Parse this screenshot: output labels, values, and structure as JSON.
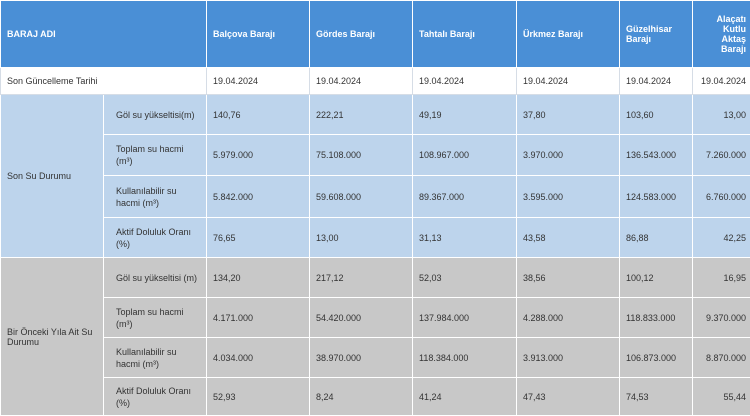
{
  "header": {
    "col0": "BARAJ ADI",
    "dams": [
      "Balçova Barajı",
      "Gördes Barajı",
      "Tahtalı Barajı",
      "Ürkmez Barajı",
      "Güzelhisar Barajı",
      "Alaçatı Kutlu Aktaş Barajı"
    ]
  },
  "update_row": {
    "label": "Son Güncelleme Tarihi",
    "values": [
      "19.04.2024",
      "19.04.2024",
      "19.04.2024",
      "19.04.2024",
      "19.04.2024",
      "19.04.2024"
    ]
  },
  "current": {
    "group_label": "Son Su Durumu",
    "rows": [
      {
        "label": "Göl su yükseltisi(m)",
        "values": [
          "140,76",
          "222,21",
          "49,19",
          "37,80",
          "103,60",
          "13,00"
        ]
      },
      {
        "label": "Toplam su hacmi (m³)",
        "values": [
          "5.979.000",
          "75.108.000",
          "108.967.000",
          "3.970.000",
          "136.543.000",
          "7.260.000"
        ]
      },
      {
        "label": "Kullanılabilir su hacmi (m³)",
        "values": [
          "5.842.000",
          "59.608.000",
          "89.367.000",
          "3.595.000",
          "124.583.000",
          "6.760.000"
        ]
      },
      {
        "label": "Aktif Doluluk Oranı (%)",
        "values": [
          "76,65",
          "13,00",
          "31,13",
          "43,58",
          "86,88",
          "42,25"
        ]
      }
    ]
  },
  "previous": {
    "group_label": "Bir Önceki Yıla Ait Su Durumu",
    "rows": [
      {
        "label": "Göl su yükseltisi (m)",
        "values": [
          "134,20",
          "217,12",
          "52,03",
          "38,56",
          "100,12",
          "16,95"
        ]
      },
      {
        "label": "Toplam su hacmi (m³)",
        "values": [
          "4.171.000",
          "54.420.000",
          "137.984.000",
          "4.288.000",
          "118.833.000",
          "9.370.000"
        ]
      },
      {
        "label": "Kullanılabilir su hacmi (m³)",
        "values": [
          "4.034.000",
          "38.970.000",
          "118.384.000",
          "3.913.000",
          "106.873.000",
          "8.870.000"
        ]
      },
      {
        "label": "Aktif Doluluk Oranı (%)",
        "values": [
          "52,93",
          "8,24",
          "41,24",
          "47,43",
          "74,53",
          "55,44"
        ]
      }
    ]
  },
  "colors": {
    "header_bg": "#4a8fd6",
    "current_bg": "#bdd4ec",
    "previous_bg": "#c8c8c8"
  }
}
